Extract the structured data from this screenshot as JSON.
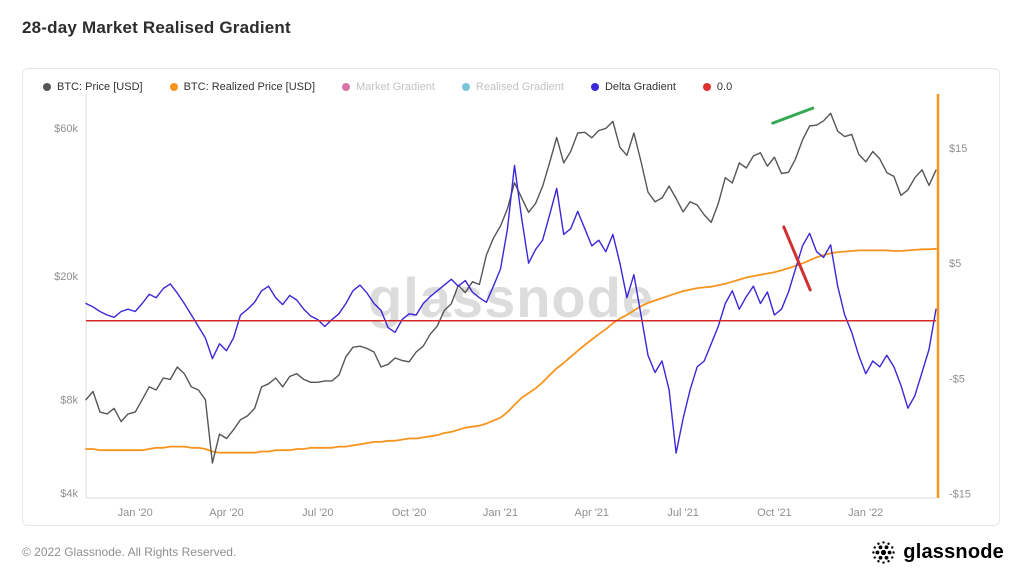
{
  "page": {
    "title": "28-day Market Realised Gradient",
    "watermark": "glassnode",
    "footer": {
      "copyright": "© 2022 Glassnode. All Rights Reserved.",
      "brand": "glassnode"
    }
  },
  "legend": [
    {
      "label": "BTC: Price [USD]",
      "color": "#565656",
      "enabled": true
    },
    {
      "label": "BTC: Realized Price [USD]",
      "color": "#f7941e",
      "enabled": true
    },
    {
      "label": "Market Gradient",
      "color": "#d973a8",
      "enabled": false
    },
    {
      "label": "Realised Gradient",
      "color": "#7bc5d8",
      "enabled": false
    },
    {
      "label": "Delta Gradient",
      "color": "#3b28d8",
      "enabled": true
    },
    {
      "label": "0.0",
      "color": "#e03131",
      "enabled": true
    }
  ],
  "chart_data": {
    "type": "line",
    "title": "28-day Market Realised Gradient",
    "x_unit": "weekly samples, mid-Nov 2019 to mid-Mar 2022",
    "x_ticks": [
      {
        "index": 7,
        "label": "Jan '20"
      },
      {
        "index": 20,
        "label": "Apr '20"
      },
      {
        "index": 33,
        "label": "Jul '20"
      },
      {
        "index": 46,
        "label": "Oct '20"
      },
      {
        "index": 59,
        "label": "Jan '21"
      },
      {
        "index": 72,
        "label": "Apr '21"
      },
      {
        "index": 85,
        "label": "Jul '21"
      },
      {
        "index": 98,
        "label": "Oct '21"
      },
      {
        "index": 111,
        "label": "Jan '22"
      }
    ],
    "left_axis": {
      "scale": "log",
      "min": 3860,
      "max": 77200,
      "ticks": [
        {
          "value": 60000,
          "label": "$60k"
        },
        {
          "value": 20000,
          "label": "$20k"
        },
        {
          "value": 8000,
          "label": "$8k"
        },
        {
          "value": 4000,
          "label": "$4k"
        }
      ]
    },
    "right_axis": {
      "scale": "linear",
      "min": -15.4,
      "max": 19.7,
      "ticks": [
        {
          "value": 15,
          "label": "$15"
        },
        {
          "value": 5,
          "label": "$5"
        },
        {
          "value": -5,
          "label": "-$5"
        },
        {
          "value": -15,
          "label": "-$15"
        }
      ]
    },
    "series": [
      {
        "name": "BTC: Price [USD]",
        "axis": "left",
        "color": "#565656",
        "width": 1.4,
        "values": [
          8000,
          8500,
          7300,
          7200,
          7500,
          6800,
          7200,
          7300,
          8000,
          8800,
          8600,
          9400,
          9300,
          10200,
          9700,
          8800,
          8600,
          8000,
          5000,
          6200,
          6000,
          6400,
          6900,
          7100,
          7500,
          8800,
          9000,
          9400,
          8800,
          9500,
          9700,
          9300,
          9100,
          9100,
          9200,
          9200,
          9600,
          11000,
          11800,
          11900,
          11700,
          11400,
          10200,
          10400,
          10900,
          10700,
          10600,
          11400,
          11900,
          13000,
          13800,
          15500,
          16300,
          18700,
          17700,
          19200,
          18800,
          23400,
          26500,
          29000,
          33000,
          40000,
          35800,
          32100,
          34300,
          38900,
          46400,
          55900,
          46300,
          50400,
          57800,
          58100,
          55800,
          58900,
          59800,
          63000,
          52000,
          49000,
          57800,
          46800,
          37300,
          34700,
          35700,
          39000,
          35600,
          32200,
          34700,
          33900,
          31500,
          29800,
          34200,
          41500,
          39900,
          46300,
          44600,
          48800,
          49900,
          45200,
          48300,
          42800,
          43200,
          47700,
          54900,
          60900,
          61300,
          63300,
          66900,
          58600,
          56300,
          57200,
          49400,
          46700,
          50400,
          47700,
          43100,
          41900,
          36400,
          37900,
          41500,
          44000,
          39200,
          43900
        ]
      },
      {
        "name": "BTC: Realized Price [USD]",
        "axis": "left",
        "color": "#f7941e",
        "width": 1.8,
        "values": [
          5550,
          5550,
          5500,
          5500,
          5500,
          5500,
          5500,
          5500,
          5500,
          5550,
          5600,
          5600,
          5650,
          5650,
          5650,
          5600,
          5600,
          5550,
          5450,
          5400,
          5400,
          5400,
          5400,
          5400,
          5400,
          5450,
          5450,
          5500,
          5500,
          5500,
          5550,
          5550,
          5600,
          5600,
          5600,
          5600,
          5650,
          5650,
          5700,
          5750,
          5800,
          5850,
          5850,
          5900,
          5900,
          5950,
          6000,
          6000,
          6050,
          6100,
          6150,
          6250,
          6300,
          6400,
          6500,
          6550,
          6600,
          6700,
          6850,
          7000,
          7300,
          7700,
          8100,
          8400,
          8700,
          9100,
          9600,
          10100,
          10500,
          11000,
          11500,
          12000,
          12500,
          13000,
          13500,
          14100,
          14600,
          15000,
          15500,
          16000,
          16400,
          16700,
          17000,
          17300,
          17600,
          17900,
          18100,
          18300,
          18400,
          18500,
          18700,
          18900,
          19200,
          19500,
          19800,
          20000,
          20200,
          20400,
          20600,
          20900,
          21200,
          21600,
          22000,
          22500,
          23000,
          23400,
          23700,
          23900,
          24000,
          24100,
          24200,
          24200,
          24200,
          24200,
          24200,
          24100,
          24100,
          24200,
          24300,
          24400,
          24400,
          24500
        ]
      },
      {
        "name": "Delta Gradient",
        "axis": "right",
        "color": "#3b28d8",
        "width": 1.4,
        "values": [
          1.5,
          1.2,
          0.8,
          0.5,
          0.3,
          0.8,
          1.0,
          0.8,
          1.5,
          2.3,
          2.0,
          2.8,
          3.2,
          2.4,
          1.5,
          0.5,
          -0.5,
          -1.5,
          -3.3,
          -2.0,
          -2.6,
          -1.5,
          0.5,
          1.0,
          1.6,
          2.6,
          3.0,
          2.0,
          1.4,
          2.2,
          1.8,
          1.0,
          0.4,
          0.1,
          -0.5,
          0.1,
          0.6,
          1.5,
          2.6,
          3.1,
          2.4,
          1.5,
          0.9,
          -0.6,
          -1.0,
          0.1,
          0.6,
          0.5,
          1.5,
          2.1,
          2.6,
          3.1,
          3.6,
          3.0,
          3.5,
          2.5,
          2.0,
          1.6,
          3.0,
          4.5,
          8.0,
          13.5,
          9.0,
          5.0,
          6.2,
          7.0,
          9.2,
          11.5,
          7.5,
          8.0,
          9.5,
          8.0,
          6.5,
          7.0,
          6.0,
          7.5,
          5.0,
          2.0,
          4.0,
          0.5,
          -3.0,
          -4.5,
          -3.5,
          -6.0,
          -11.5,
          -8.5,
          -6.0,
          -4.0,
          -3.5,
          -2.0,
          -0.5,
          1.5,
          2.6,
          1.0,
          2.1,
          3.0,
          1.5,
          2.5,
          0.5,
          1.0,
          2.5,
          4.5,
          6.5,
          7.6,
          6.0,
          5.5,
          6.6,
          3.0,
          0.5,
          -1.0,
          -3.0,
          -4.6,
          -3.5,
          -4.0,
          -3.0,
          -4.0,
          -5.6,
          -7.6,
          -6.5,
          -4.5,
          -2.5,
          1.0
        ]
      }
    ],
    "zero_line": {
      "value": 0,
      "label": "0.0",
      "color": "#d42a2a"
    },
    "right_edge_line": {
      "color": "#f7941e"
    },
    "annotations": [
      {
        "name": "bull-trendline",
        "color": "#34a853",
        "x1": 0.808,
        "y1": 0.072,
        "x2": 0.855,
        "y2": 0.035
      },
      {
        "name": "bear-trendline",
        "color": "#d13030",
        "x1": 0.821,
        "y1": 0.329,
        "x2": 0.852,
        "y2": 0.485
      }
    ]
  }
}
